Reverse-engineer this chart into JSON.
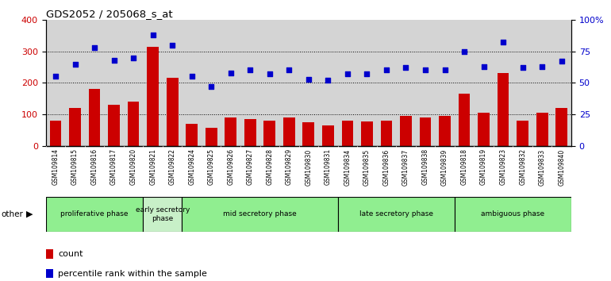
{
  "title": "GDS2052 / 205068_s_at",
  "samples": [
    "GSM109814",
    "GSM109815",
    "GSM109816",
    "GSM109817",
    "GSM109820",
    "GSM109821",
    "GSM109822",
    "GSM109824",
    "GSM109825",
    "GSM109826",
    "GSM109827",
    "GSM109828",
    "GSM109829",
    "GSM109830",
    "GSM109831",
    "GSM109834",
    "GSM109835",
    "GSM109836",
    "GSM109837",
    "GSM109838",
    "GSM109839",
    "GSM109818",
    "GSM109819",
    "GSM109823",
    "GSM109832",
    "GSM109833",
    "GSM109840"
  ],
  "counts": [
    80,
    120,
    180,
    130,
    140,
    315,
    215,
    70,
    58,
    90,
    85,
    80,
    90,
    75,
    65,
    80,
    78,
    80,
    95,
    90,
    95,
    165,
    105,
    230,
    80,
    105,
    120
  ],
  "percentiles": [
    55,
    65,
    78,
    68,
    70,
    88,
    80,
    55,
    47,
    58,
    60,
    57,
    60,
    53,
    52,
    57,
    57,
    60,
    62,
    60,
    60,
    75,
    63,
    82,
    62,
    63,
    67
  ],
  "phases": [
    {
      "label": "proliferative phase",
      "start": 0,
      "end": 5,
      "color": "#90EE90"
    },
    {
      "label": "early secretory\nphase",
      "start": 5,
      "end": 7,
      "color": "#c8f0c8"
    },
    {
      "label": "mid secretory phase",
      "start": 7,
      "end": 15,
      "color": "#90EE90"
    },
    {
      "label": "late secretory phase",
      "start": 15,
      "end": 21,
      "color": "#90EE90"
    },
    {
      "label": "ambiguous phase",
      "start": 21,
      "end": 27,
      "color": "#90EE90"
    }
  ],
  "bar_color": "#CC0000",
  "dot_color": "#0000CC",
  "ylim_left": [
    0,
    400
  ],
  "ylim_right": [
    0,
    100
  ],
  "yticks_left": [
    0,
    100,
    200,
    300,
    400
  ],
  "yticks_right": [
    0,
    25,
    50,
    75,
    100
  ],
  "ytick_labels_right": [
    "0",
    "25",
    "50",
    "75",
    "100%"
  ],
  "background_color": "#d4d4d4",
  "tick_bg_color": "#d4d4d4"
}
